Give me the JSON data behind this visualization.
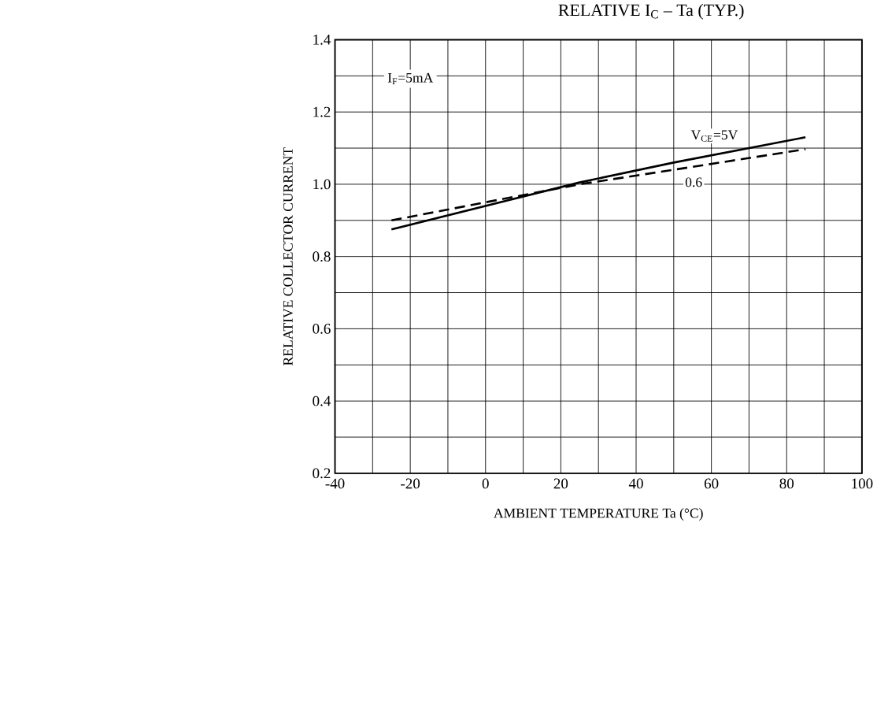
{
  "chart_data": {
    "type": "line",
    "title": "RELATIVE I$_{C}$ – Ta        (TYP.)",
    "xlabel": "AMBIENT TEMPERATURE    Ta    (°C)",
    "ylabel": "RELATIVE COLLECTOR CURRENT",
    "annotations": [
      "I$_{F}$=5mA"
    ],
    "xlim": [
      -40,
      100
    ],
    "ylim": [
      0.2,
      1.4
    ],
    "xticks": [
      -40,
      {
        "value": -30,
        "label": null
      },
      -20,
      {
        "value": -10,
        "label": null
      },
      0,
      {
        "value": 10,
        "label": null
      },
      20,
      {
        "value": 30,
        "label": null
      },
      40,
      {
        "value": 50,
        "label": null
      },
      60,
      {
        "value": 70,
        "label": null
      },
      80,
      {
        "value": 90,
        "label": null
      },
      100
    ],
    "yticks": [
      0.2,
      {
        "value": 0.3,
        "label": null
      },
      0.4,
      {
        "value": 0.5,
        "label": null
      },
      0.6,
      {
        "value": 0.7,
        "label": null
      },
      0.8,
      {
        "value": 0.9,
        "label": null
      },
      {
        "value": 1.0,
        "label": "1.0"
      },
      {
        "value": 1.1,
        "label": null
      },
      1.2,
      {
        "value": 1.3,
        "label": null
      },
      1.4
    ],
    "grid": true,
    "series": [
      {
        "name": "V$_{CE}$=5V",
        "color": "#000000",
        "line_style": "solid",
        "x": [
          -25,
          0,
          25,
          50,
          85
        ],
        "values": [
          0.875,
          0.94,
          1.005,
          1.06,
          1.13
        ]
      },
      {
        "name": "0.6",
        "color": "#000000",
        "line_style": "dashed",
        "x": [
          -25,
          0,
          25,
          50,
          85
        ],
        "values": [
          0.9,
          0.95,
          1.0,
          1.04,
          1.097
        ]
      }
    ]
  }
}
